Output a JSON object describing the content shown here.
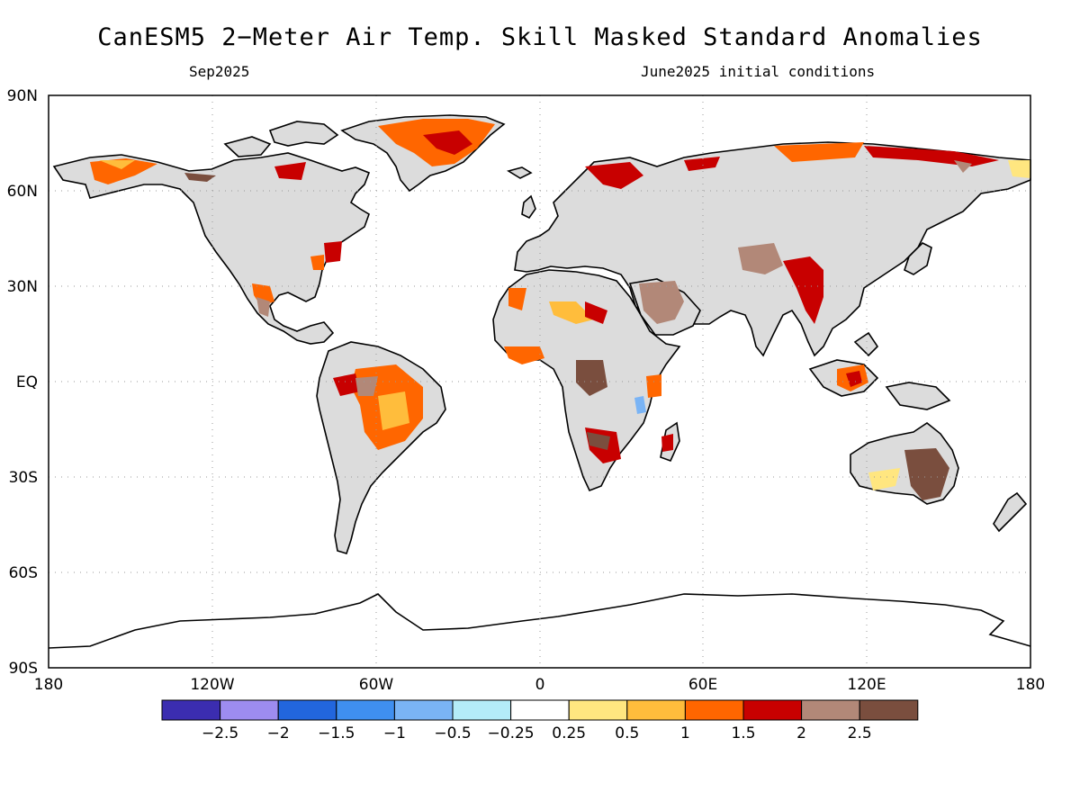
{
  "title": "CanESM5 2−Meter Air Temp. Skill Masked Standard Anomalies",
  "valid_month": "Sep2025",
  "initial_conditions": "June2025 initial conditions",
  "map": {
    "projection": "equirectangular",
    "lon_range": [
      -180,
      180
    ],
    "lat_range": [
      -90,
      90
    ],
    "lat_labels": [
      "90N",
      "60N",
      "30N",
      "EQ",
      "30S",
      "60S",
      "90S"
    ],
    "lon_labels": [
      "180",
      "120W",
      "60W",
      "0",
      "60E",
      "120E",
      "180"
    ],
    "grid": "dotted",
    "masked_land_color": "#dcdcdc"
  },
  "colorbar": {
    "colors": [
      "#3b2db0",
      "#9d8cf0",
      "#2266dd",
      "#3f8ff0",
      "#7ab4f5",
      "#b4ecf8",
      "#ffffff",
      "#ffe680",
      "#ffbd3c",
      "#ff6600",
      "#c80000",
      "#b28878",
      "#7a4e3e"
    ],
    "labels": [
      "−2.5",
      "−2",
      "−1.5",
      "−1",
      "−0.5",
      "−0.25",
      "0.25",
      "0.5",
      "1",
      "1.5",
      "2",
      "2.5"
    ]
  }
}
